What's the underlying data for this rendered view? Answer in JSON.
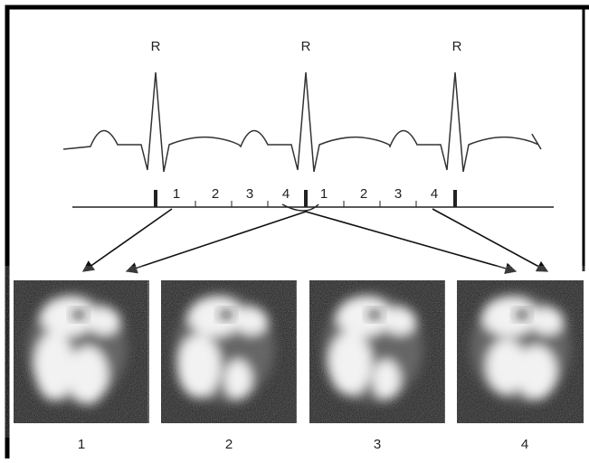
{
  "ecg": {
    "peak_labels": [
      "R",
      "R",
      "R"
    ],
    "phase_labels": [
      "1",
      "2",
      "3",
      "4",
      "1",
      "2",
      "3",
      "4"
    ]
  },
  "frames": {
    "labels": [
      "1",
      "2",
      "3",
      "4"
    ]
  }
}
